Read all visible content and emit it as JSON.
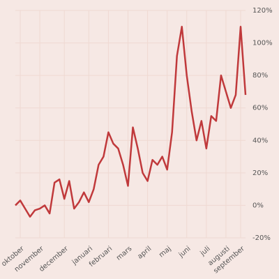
{
  "chart_data": {
    "type": "line",
    "color": "#c0393b",
    "grid": true,
    "categories": [
      null,
      "oktober",
      null,
      null,
      null,
      "november",
      null,
      null,
      null,
      null,
      "december",
      null,
      null,
      null,
      null,
      "januari",
      null,
      null,
      null,
      "februari",
      null,
      null,
      null,
      "mars",
      null,
      null,
      null,
      "april",
      null,
      null,
      null,
      "maj",
      null,
      null,
      null,
      "juni",
      null,
      null,
      null,
      "juli",
      null,
      null,
      null,
      "augusti",
      null,
      null,
      "september",
      null
    ],
    "values": [
      0,
      3,
      -2,
      -7,
      -3,
      -2,
      0,
      -5,
      14,
      16,
      4,
      15,
      -2,
      2,
      8,
      2,
      10,
      25,
      30,
      45,
      38,
      35,
      25,
      12,
      48,
      35,
      20,
      15,
      28,
      25,
      30,
      22,
      45,
      92,
      110,
      80,
      58,
      40,
      52,
      35,
      55,
      52,
      80,
      70,
      60,
      68,
      110,
      68
    ],
    "ylim": [
      -20,
      120
    ],
    "yticks": [
      {
        "value": -20,
        "label": "-20%"
      },
      {
        "value": 0,
        "label": "0%"
      },
      {
        "value": 20,
        "label": "20%"
      },
      {
        "value": 40,
        "label": "40%"
      },
      {
        "value": 60,
        "label": "60%"
      },
      {
        "value": 80,
        "label": "80%"
      },
      {
        "value": 100,
        "label": "100%"
      },
      {
        "value": 120,
        "label": "120%"
      }
    ]
  }
}
